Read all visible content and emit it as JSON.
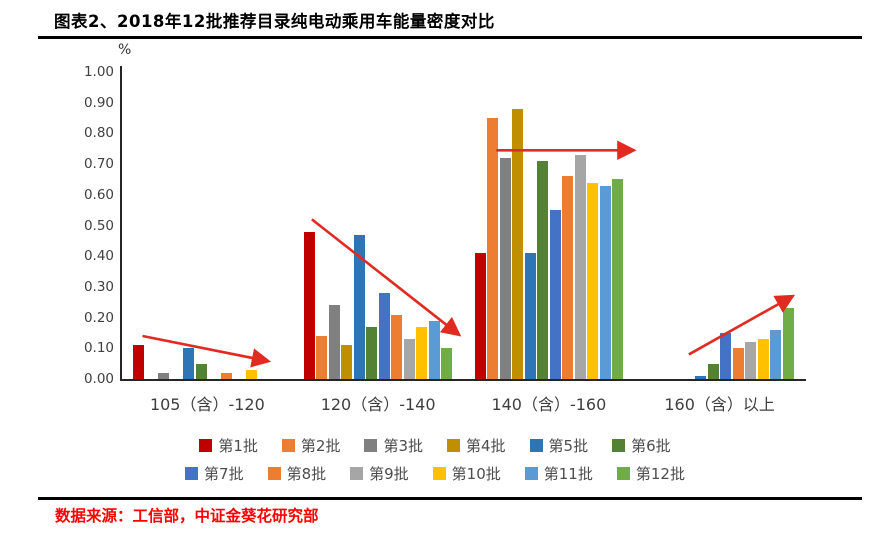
{
  "header": {
    "title": "图表2、2018年12批推荐目录纯电动乘用车能量密度对比"
  },
  "footer": {
    "source": "数据来源：工信部，中证金葵花研究部",
    "source_color": "#FF0000"
  },
  "chart_data": {
    "type": "bar",
    "title": "图表2、2018年12批推荐目录纯电动乘用车能量密度对比",
    "unit_label": "%",
    "grid": false,
    "legend_position": "bottom",
    "ylim": [
      0,
      1.0
    ],
    "y_ticks": [
      "0.00",
      "0.10",
      "0.20",
      "0.30",
      "0.40",
      "0.50",
      "0.60",
      "0.70",
      "0.80",
      "0.90",
      "1.00"
    ],
    "categories": [
      "105（含）-120",
      "120（含）-140",
      "140（含）-160",
      "160（含）以上"
    ],
    "series": [
      {
        "name": "第1批",
        "color": "#C00000",
        "values": [
          0.11,
          0.48,
          0.41,
          0
        ]
      },
      {
        "name": "第2批",
        "color": "#ED7D31",
        "values": [
          0,
          0.14,
          0.85,
          0
        ]
      },
      {
        "name": "第3批",
        "color": "#808080",
        "values": [
          0.02,
          0.24,
          0.72,
          0
        ]
      },
      {
        "name": "第4批",
        "color": "#BF8F00",
        "values": [
          0,
          0.11,
          0.88,
          0
        ]
      },
      {
        "name": "第5批",
        "color": "#2E75B6",
        "values": [
          0.1,
          0.47,
          0.41,
          0.01
        ]
      },
      {
        "name": "第6批",
        "color": "#548235",
        "values": [
          0.05,
          0.17,
          0.71,
          0.05
        ]
      },
      {
        "name": "第7批",
        "color": "#4472C4",
        "values": [
          0,
          0.28,
          0.55,
          0.15
        ]
      },
      {
        "name": "第8批",
        "color": "#ED7D31",
        "values": [
          0.02,
          0.21,
          0.66,
          0.1
        ]
      },
      {
        "name": "第9批",
        "color": "#A6A6A6",
        "values": [
          0,
          0.13,
          0.73,
          0.12
        ]
      },
      {
        "name": "第10批",
        "color": "#FFC000",
        "values": [
          0.03,
          0.17,
          0.64,
          0.13
        ]
      },
      {
        "name": "第11批",
        "color": "#5B9BD5",
        "values": [
          0,
          0.19,
          0.63,
          0.16
        ]
      },
      {
        "name": "第12批",
        "color": "#70AD47",
        "values": [
          0,
          0.1,
          0.65,
          0.23
        ]
      }
    ],
    "trend_arrows": {
      "color": "#E02B20",
      "note": "x values are fractions of the x-axis span, y values are in data units (%)",
      "arrows": [
        {
          "x1": 0.03,
          "y1": 0.14,
          "x2": 0.21,
          "y2": 0.06
        },
        {
          "x1": 0.278,
          "y1": 0.52,
          "x2": 0.49,
          "y2": 0.15
        },
        {
          "x1": 0.548,
          "y1": 0.745,
          "x2": 0.745,
          "y2": 0.745
        },
        {
          "x1": 0.83,
          "y1": 0.08,
          "x2": 0.978,
          "y2": 0.265
        }
      ]
    }
  }
}
